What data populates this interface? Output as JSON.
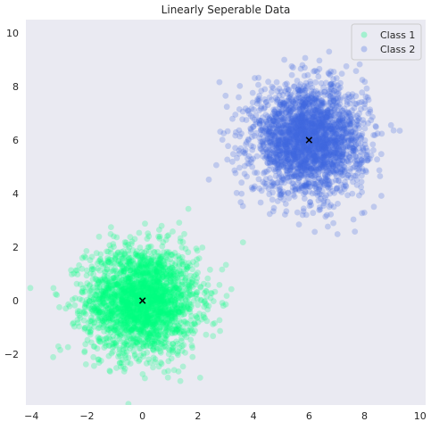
{
  "chart_data": {
    "type": "scatter",
    "title": "Linearly Seperable Data",
    "xlabel": "",
    "ylabel": "",
    "xlim": [
      -4.2,
      10.2
    ],
    "ylim": [
      -3.9,
      10.5
    ],
    "xticks": [
      -4,
      -2,
      0,
      2,
      4,
      6,
      8,
      10
    ],
    "yticks": [
      -2,
      0,
      2,
      4,
      6,
      8,
      10
    ],
    "xtick_labels": [
      "−4",
      "−2",
      "0",
      "2",
      "4",
      "6",
      "8",
      "10"
    ],
    "ytick_labels": [
      "−2",
      "0",
      "2",
      "4",
      "6",
      "8",
      "10"
    ],
    "grid": false,
    "background": "#eaeaf2",
    "legend_position": "top-right",
    "series": [
      {
        "name": "Class 1",
        "color": "#00ff7f",
        "alpha": 0.25,
        "center": [
          0,
          0
        ],
        "spread": 1,
        "count": 2500
      },
      {
        "name": "Class 2",
        "color": "#4169e1",
        "alpha": 0.25,
        "center": [
          6,
          6
        ],
        "spread": 1,
        "count": 2500
      }
    ],
    "centroids": [
      {
        "x": 0,
        "y": 0,
        "marker": "x",
        "color": "#000000"
      },
      {
        "x": 6,
        "y": 6,
        "marker": "x",
        "color": "#000000"
      }
    ]
  }
}
